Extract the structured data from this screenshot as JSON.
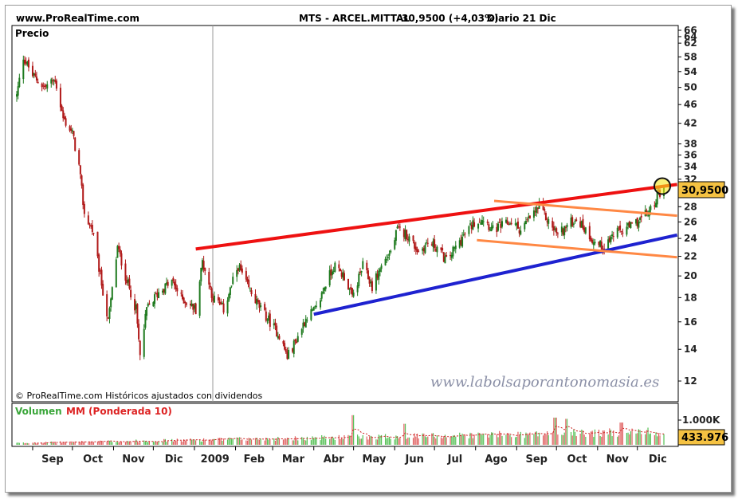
{
  "header": {
    "site": "www.ProRealTime.com",
    "ticker": "MTS - ARCEL.MITTAL",
    "price_change": "30,9500 (+4,03%)",
    "period": "Diario  21 Dic"
  },
  "price_panel": {
    "label": "Precio",
    "last_price_box": "30,9500",
    "copyright": "© ProRealTime.com Históricos ajustados con dividendos",
    "watermark": "www.labolsaporantonomasia.es"
  },
  "volume_panel": {
    "label_a": "Volumen",
    "label_b": "MM (Ponderada 10)",
    "tick_label": "1.000K",
    "last_volume_box": "433.976"
  },
  "colors": {
    "candle_up": "#1e7a1e",
    "candle_down": "#b01818",
    "resistance": "#ee1111",
    "support": "#1e22d0",
    "channel": "#ff8844",
    "volume_up": "#55c055",
    "volume_down": "#e06060",
    "price_box": "#f5c242"
  },
  "chart_data": {
    "type": "candlestick",
    "title": "MTS - ARCEL.MITTAL",
    "ylabel": "Precio",
    "y_scale": "log",
    "ylim": [
      11.5,
      66
    ],
    "y_ticks": [
      12,
      14,
      16,
      18,
      20,
      22,
      24,
      26,
      28,
      30,
      32,
      34,
      36,
      38,
      42,
      46,
      50,
      54,
      58,
      62,
      64,
      66
    ],
    "x_ticks": [
      "Sep",
      "Oct",
      "Nov",
      "Dic",
      "2009",
      "Feb",
      "Mar",
      "Abr",
      "May",
      "Jun",
      "Jul",
      "Ago",
      "Sep",
      "Oct",
      "Nov",
      "Dic"
    ],
    "x_range": [
      "2008-08-20",
      "2009-12-21"
    ],
    "price_anchors": [
      [
        "2008-08-20",
        48
      ],
      [
        "2008-08-25",
        58
      ],
      [
        "2008-09-01",
        53
      ],
      [
        "2008-09-10",
        50
      ],
      [
        "2008-09-18",
        52
      ],
      [
        "2008-09-24",
        43
      ],
      [
        "2008-10-01",
        40
      ],
      [
        "2008-10-06",
        34
      ],
      [
        "2008-10-10",
        27
      ],
      [
        "2008-10-16",
        25
      ],
      [
        "2008-10-22",
        20
      ],
      [
        "2008-10-28",
        16
      ],
      [
        "2008-11-04",
        23
      ],
      [
        "2008-11-10",
        20
      ],
      [
        "2008-11-18",
        17
      ],
      [
        "2008-11-21",
        13.5
      ],
      [
        "2008-11-26",
        17
      ],
      [
        "2008-12-05",
        18.5
      ],
      [
        "2008-12-15",
        19.5
      ],
      [
        "2008-12-22",
        18
      ],
      [
        "2009-01-02",
        17
      ],
      [
        "2009-01-07",
        21.5
      ],
      [
        "2009-01-15",
        18
      ],
      [
        "2009-01-23",
        17
      ],
      [
        "2009-02-03",
        21
      ],
      [
        "2009-02-10",
        19
      ],
      [
        "2009-02-20",
        17
      ],
      [
        "2009-02-27",
        16
      ],
      [
        "2009-03-06",
        15
      ],
      [
        "2009-03-12",
        13.5
      ],
      [
        "2009-03-18",
        14.5
      ],
      [
        "2009-03-27",
        16.5
      ],
      [
        "2009-04-03",
        17
      ],
      [
        "2009-04-09",
        19
      ],
      [
        "2009-04-16",
        21
      ],
      [
        "2009-04-24",
        20
      ],
      [
        "2009-04-30",
        18
      ],
      [
        "2009-05-08",
        21
      ],
      [
        "2009-05-15",
        19
      ],
      [
        "2009-05-22",
        21
      ],
      [
        "2009-05-29",
        22.5
      ],
      [
        "2009-06-03",
        25
      ],
      [
        "2009-06-10",
        24.5
      ],
      [
        "2009-06-19",
        22.5
      ],
      [
        "2009-06-26",
        23.5
      ],
      [
        "2009-07-03",
        23
      ],
      [
        "2009-07-10",
        21.5
      ],
      [
        "2009-07-17",
        23
      ],
      [
        "2009-07-24",
        24.5
      ],
      [
        "2009-07-31",
        26
      ],
      [
        "2009-08-07",
        26.5
      ],
      [
        "2009-08-14",
        25
      ],
      [
        "2009-08-21",
        25.5
      ],
      [
        "2009-08-28",
        26
      ],
      [
        "2009-09-04",
        25
      ],
      [
        "2009-09-11",
        26.5
      ],
      [
        "2009-09-18",
        28
      ],
      [
        "2009-09-25",
        26
      ],
      [
        "2009-10-02",
        24.5
      ],
      [
        "2009-10-09",
        25.5
      ],
      [
        "2009-10-16",
        26.5
      ],
      [
        "2009-10-23",
        25
      ],
      [
        "2009-10-30",
        23.5
      ],
      [
        "2009-11-06",
        23
      ],
      [
        "2009-11-13",
        24.5
      ],
      [
        "2009-11-20",
        25
      ],
      [
        "2009-11-27",
        25.5
      ],
      [
        "2009-12-04",
        26.5
      ],
      [
        "2009-12-11",
        27.5
      ],
      [
        "2009-12-16",
        29.5
      ],
      [
        "2009-12-21",
        30.95
      ]
    ],
    "last_close": 30.95,
    "change_pct": 4.03,
    "trendlines": [
      {
        "name": "resistance",
        "color": "#ee1111",
        "from": [
          "2009-01-02",
          22.8
        ],
        "to": [
          "2009-12-31",
          31.2
        ]
      },
      {
        "name": "support",
        "color": "#1e22d0",
        "from": [
          "2009-04-01",
          16.6
        ],
        "to": [
          "2009-12-31",
          24.4
        ]
      },
      {
        "name": "channel-upper",
        "color": "#ff8844",
        "from": [
          "2009-08-15",
          28.8
        ],
        "to": [
          "2009-12-31",
          26.8
        ]
      },
      {
        "name": "channel-lower",
        "color": "#ff8844",
        "from": [
          "2009-08-02",
          23.8
        ],
        "to": [
          "2009-12-31",
          21.9
        ]
      }
    ],
    "volume": {
      "label": "Volumen",
      "ma_label": "MM (Ponderada 10)",
      "ma_type": "weighted",
      "ma_period": 10,
      "tick": 1000000,
      "last_volume": 433976,
      "peak_values": [
        [
          "2009-05-01",
          1200000
        ],
        [
          "2009-06-08",
          850000
        ],
        [
          "2009-09-30",
          1100000
        ],
        [
          "2009-10-09",
          1050000
        ],
        [
          "2009-11-19",
          900000
        ]
      ]
    }
  }
}
